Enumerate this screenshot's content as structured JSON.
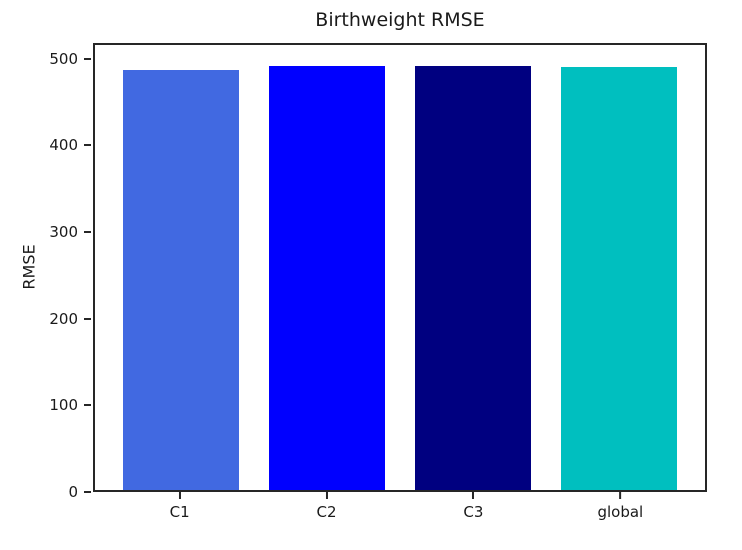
{
  "chart_data": {
    "type": "bar",
    "title": "Birthweight RMSE",
    "xlabel": "",
    "ylabel": "RMSE",
    "categories": [
      "C1",
      "C2",
      "C3",
      "global"
    ],
    "values": [
      489,
      493,
      493,
      492
    ],
    "bar_colors": [
      "#4169E1",
      "#0000FF",
      "#000080",
      "#00BFBF"
    ],
    "bar_color_names": [
      "royalblue",
      "blue",
      "navy",
      "teal-cyan"
    ],
    "ylim": [
      0,
      518
    ],
    "yticks": [
      0,
      100,
      200,
      300,
      400,
      500
    ],
    "xlim": [
      -0.59,
      3.59
    ],
    "bar_width_fraction": 0.8,
    "grid": false,
    "legend": false,
    "spine_color": "#262626",
    "background_color": "#ffffff"
  }
}
